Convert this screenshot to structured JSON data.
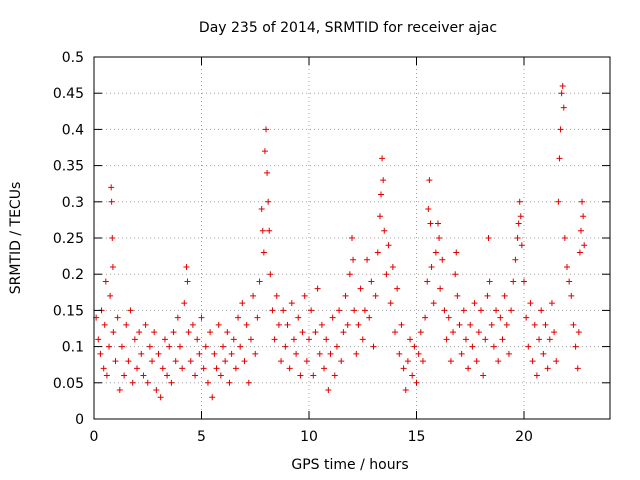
{
  "chart_data": {
    "type": "scatter",
    "title": "Day 235 of 2014, SRMTID for receiver ajac",
    "xlabel": "GPS time / hours",
    "ylabel": "SRMTID / TECUs",
    "xlim": [
      0,
      24
    ],
    "ylim": [
      0,
      0.5
    ],
    "xticks": [
      0,
      5,
      10,
      15,
      20
    ],
    "xtick_labels": [
      "0",
      "5",
      "10",
      "15",
      "20"
    ],
    "yticks": [
      0,
      0.05,
      0.1,
      0.15,
      0.2,
      0.25,
      0.3,
      0.35,
      0.4,
      0.45,
      0.5
    ],
    "ytick_labels": [
      "0",
      "0.05",
      "0.1",
      "0.15",
      "0.2",
      "0.25",
      "0.3",
      "0.35",
      "0.4",
      "0.45",
      "0.5"
    ],
    "grid": true,
    "marker": "+",
    "color": "#e00000",
    "series": [
      {
        "name": "SRMTID",
        "points": [
          [
            0.1,
            0.14
          ],
          [
            0.2,
            0.11
          ],
          [
            0.3,
            0.09
          ],
          [
            0.35,
            0.15
          ],
          [
            0.45,
            0.07
          ],
          [
            0.5,
            0.13
          ],
          [
            0.55,
            0.19
          ],
          [
            0.6,
            0.06
          ],
          [
            0.7,
            0.1
          ],
          [
            0.75,
            0.17
          ],
          [
            0.8,
            0.32
          ],
          [
            0.82,
            0.3
          ],
          [
            0.85,
            0.25
          ],
          [
            0.88,
            0.21
          ],
          [
            0.9,
            0.12
          ],
          [
            1.0,
            0.08
          ],
          [
            1.1,
            0.14
          ],
          [
            1.2,
            0.04
          ],
          [
            1.3,
            0.1
          ],
          [
            1.4,
            0.06
          ],
          [
            1.5,
            0.13
          ],
          [
            1.6,
            0.08
          ],
          [
            1.7,
            0.15
          ],
          [
            1.8,
            0.05
          ],
          [
            1.9,
            0.11
          ],
          [
            2.0,
            0.07
          ],
          [
            2.1,
            0.12
          ],
          [
            2.2,
            0.09
          ],
          [
            2.3,
            0.06
          ],
          [
            2.4,
            0.13
          ],
          [
            2.5,
            0.05
          ],
          [
            2.6,
            0.1
          ],
          [
            2.7,
            0.08
          ],
          [
            2.8,
            0.12
          ],
          [
            2.9,
            0.04
          ],
          [
            3.0,
            0.09
          ],
          [
            3.1,
            0.03
          ],
          [
            3.2,
            0.07
          ],
          [
            3.3,
            0.11
          ],
          [
            3.4,
            0.06
          ],
          [
            3.5,
            0.1
          ],
          [
            3.6,
            0.05
          ],
          [
            3.7,
            0.12
          ],
          [
            3.8,
            0.08
          ],
          [
            3.9,
            0.14
          ],
          [
            4.0,
            0.1
          ],
          [
            4.1,
            0.07
          ],
          [
            4.2,
            0.16
          ],
          [
            4.3,
            0.21
          ],
          [
            4.35,
            0.19
          ],
          [
            4.4,
            0.12
          ],
          [
            4.5,
            0.08
          ],
          [
            4.6,
            0.13
          ],
          [
            4.7,
            0.06
          ],
          [
            4.8,
            0.11
          ],
          [
            4.9,
            0.09
          ],
          [
            5.0,
            0.14
          ],
          [
            5.1,
            0.07
          ],
          [
            5.2,
            0.1
          ],
          [
            5.3,
            0.05
          ],
          [
            5.4,
            0.12
          ],
          [
            5.5,
            0.03
          ],
          [
            5.6,
            0.09
          ],
          [
            5.7,
            0.07
          ],
          [
            5.8,
            0.13
          ],
          [
            5.9,
            0.06
          ],
          [
            6.0,
            0.1
          ],
          [
            6.1,
            0.08
          ],
          [
            6.2,
            0.12
          ],
          [
            6.3,
            0.05
          ],
          [
            6.4,
            0.09
          ],
          [
            6.5,
            0.11
          ],
          [
            6.6,
            0.07
          ],
          [
            6.7,
            0.14
          ],
          [
            6.8,
            0.1
          ],
          [
            6.9,
            0.16
          ],
          [
            7.0,
            0.08
          ],
          [
            7.1,
            0.13
          ],
          [
            7.2,
            0.05
          ],
          [
            7.3,
            0.11
          ],
          [
            7.4,
            0.17
          ],
          [
            7.5,
            0.09
          ],
          [
            7.6,
            0.14
          ],
          [
            7.7,
            0.19
          ],
          [
            7.8,
            0.29
          ],
          [
            7.85,
            0.26
          ],
          [
            7.9,
            0.23
          ],
          [
            7.95,
            0.37
          ],
          [
            8.0,
            0.4
          ],
          [
            8.05,
            0.34
          ],
          [
            8.1,
            0.3
          ],
          [
            8.15,
            0.26
          ],
          [
            8.2,
            0.2
          ],
          [
            8.3,
            0.15
          ],
          [
            8.4,
            0.11
          ],
          [
            8.5,
            0.17
          ],
          [
            8.6,
            0.13
          ],
          [
            8.7,
            0.08
          ],
          [
            8.8,
            0.15
          ],
          [
            8.9,
            0.1
          ],
          [
            9.0,
            0.13
          ],
          [
            9.1,
            0.07
          ],
          [
            9.2,
            0.16
          ],
          [
            9.3,
            0.11
          ],
          [
            9.4,
            0.09
          ],
          [
            9.5,
            0.14
          ],
          [
            9.6,
            0.06
          ],
          [
            9.7,
            0.12
          ],
          [
            9.8,
            0.17
          ],
          [
            9.9,
            0.08
          ],
          [
            10.0,
            0.11
          ],
          [
            10.1,
            0.15
          ],
          [
            10.2,
            0.06
          ],
          [
            10.3,
            0.12
          ],
          [
            10.4,
            0.18
          ],
          [
            10.5,
            0.09
          ],
          [
            10.6,
            0.13
          ],
          [
            10.7,
            0.07
          ],
          [
            10.8,
            0.11
          ],
          [
            10.9,
            0.04
          ],
          [
            11.0,
            0.09
          ],
          [
            11.1,
            0.14
          ],
          [
            11.2,
            0.06
          ],
          [
            11.3,
            0.1
          ],
          [
            11.4,
            0.15
          ],
          [
            11.5,
            0.08
          ],
          [
            11.6,
            0.12
          ],
          [
            11.7,
            0.17
          ],
          [
            11.8,
            0.13
          ],
          [
            11.9,
            0.2
          ],
          [
            12.0,
            0.25
          ],
          [
            12.05,
            0.22
          ],
          [
            12.1,
            0.15
          ],
          [
            12.2,
            0.09
          ],
          [
            12.3,
            0.13
          ],
          [
            12.4,
            0.18
          ],
          [
            12.5,
            0.11
          ],
          [
            12.6,
            0.15
          ],
          [
            12.7,
            0.22
          ],
          [
            12.8,
            0.14
          ],
          [
            12.9,
            0.19
          ],
          [
            13.0,
            0.1
          ],
          [
            13.1,
            0.17
          ],
          [
            13.2,
            0.23
          ],
          [
            13.3,
            0.28
          ],
          [
            13.35,
            0.31
          ],
          [
            13.4,
            0.36
          ],
          [
            13.45,
            0.33
          ],
          [
            13.5,
            0.26
          ],
          [
            13.6,
            0.2
          ],
          [
            13.7,
            0.24
          ],
          [
            13.8,
            0.16
          ],
          [
            13.9,
            0.21
          ],
          [
            14.0,
            0.12
          ],
          [
            14.1,
            0.18
          ],
          [
            14.2,
            0.09
          ],
          [
            14.3,
            0.13
          ],
          [
            14.4,
            0.07
          ],
          [
            14.5,
            0.04
          ],
          [
            14.6,
            0.08
          ],
          [
            14.7,
            0.11
          ],
          [
            14.8,
            0.06
          ],
          [
            14.9,
            0.1
          ],
          [
            15.0,
            0.05
          ],
          [
            15.1,
            0.09
          ],
          [
            15.2,
            0.12
          ],
          [
            15.3,
            0.08
          ],
          [
            15.4,
            0.14
          ],
          [
            15.5,
            0.19
          ],
          [
            15.55,
            0.29
          ],
          [
            15.6,
            0.33
          ],
          [
            15.65,
            0.27
          ],
          [
            15.7,
            0.21
          ],
          [
            15.8,
            0.16
          ],
          [
            15.9,
            0.23
          ],
          [
            16.0,
            0.27
          ],
          [
            16.05,
            0.25
          ],
          [
            16.1,
            0.18
          ],
          [
            16.2,
            0.22
          ],
          [
            16.3,
            0.15
          ],
          [
            16.4,
            0.11
          ],
          [
            16.5,
            0.14
          ],
          [
            16.6,
            0.08
          ],
          [
            16.7,
            0.12
          ],
          [
            16.8,
            0.2
          ],
          [
            16.85,
            0.23
          ],
          [
            16.9,
            0.17
          ],
          [
            17.0,
            0.13
          ],
          [
            17.1,
            0.09
          ],
          [
            17.2,
            0.15
          ],
          [
            17.3,
            0.11
          ],
          [
            17.4,
            0.07
          ],
          [
            17.5,
            0.13
          ],
          [
            17.6,
            0.1
          ],
          [
            17.7,
            0.16
          ],
          [
            17.8,
            0.08
          ],
          [
            17.9,
            0.12
          ],
          [
            18.0,
            0.15
          ],
          [
            18.1,
            0.06
          ],
          [
            18.2,
            0.11
          ],
          [
            18.3,
            0.17
          ],
          [
            18.35,
            0.25
          ],
          [
            18.4,
            0.19
          ],
          [
            18.5,
            0.13
          ],
          [
            18.6,
            0.1
          ],
          [
            18.7,
            0.15
          ],
          [
            18.8,
            0.08
          ],
          [
            18.9,
            0.14
          ],
          [
            19.0,
            0.11
          ],
          [
            19.1,
            0.17
          ],
          [
            19.2,
            0.13
          ],
          [
            19.3,
            0.09
          ],
          [
            19.4,
            0.15
          ],
          [
            19.5,
            0.19
          ],
          [
            19.6,
            0.22
          ],
          [
            19.7,
            0.25
          ],
          [
            19.75,
            0.27
          ],
          [
            19.8,
            0.3
          ],
          [
            19.85,
            0.28
          ],
          [
            19.9,
            0.24
          ],
          [
            20.0,
            0.19
          ],
          [
            20.1,
            0.14
          ],
          [
            20.2,
            0.1
          ],
          [
            20.3,
            0.16
          ],
          [
            20.4,
            0.08
          ],
          [
            20.5,
            0.13
          ],
          [
            20.6,
            0.06
          ],
          [
            20.7,
            0.11
          ],
          [
            20.8,
            0.15
          ],
          [
            20.9,
            0.09
          ],
          [
            21.0,
            0.13
          ],
          [
            21.1,
            0.07
          ],
          [
            21.2,
            0.11
          ],
          [
            21.3,
            0.16
          ],
          [
            21.4,
            0.12
          ],
          [
            21.5,
            0.08
          ],
          [
            21.6,
            0.3
          ],
          [
            21.65,
            0.36
          ],
          [
            21.7,
            0.4
          ],
          [
            21.75,
            0.45
          ],
          [
            21.8,
            0.46
          ],
          [
            21.85,
            0.43
          ],
          [
            21.9,
            0.25
          ],
          [
            22.0,
            0.21
          ],
          [
            22.1,
            0.19
          ],
          [
            22.2,
            0.17
          ],
          [
            22.3,
            0.13
          ],
          [
            22.4,
            0.1
          ],
          [
            22.5,
            0.07
          ],
          [
            22.55,
            0.12
          ],
          [
            22.6,
            0.23
          ],
          [
            22.65,
            0.26
          ],
          [
            22.7,
            0.3
          ],
          [
            22.75,
            0.28
          ],
          [
            22.8,
            0.24
          ]
        ]
      }
    ]
  }
}
